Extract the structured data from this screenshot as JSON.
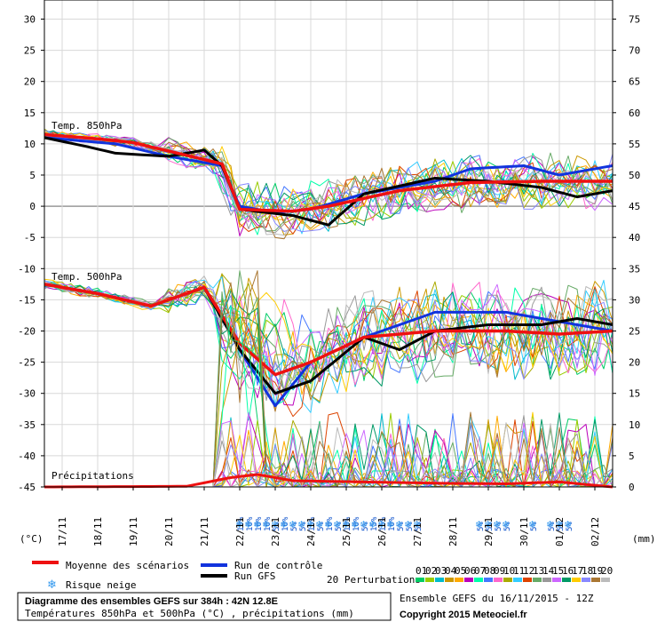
{
  "chart_data": {
    "type": "line",
    "x_dates": [
      "17/11",
      "18/11",
      "19/11",
      "20/11",
      "21/11",
      "22/11",
      "23/11",
      "24/11",
      "25/11",
      "26/11",
      "27/11",
      "28/11",
      "29/11",
      "30/11",
      "01/12",
      "02/12"
    ],
    "x_step_hours": 6,
    "x_steps": 64,
    "left_axis": {
      "label": "(°C)",
      "min": -45,
      "max": 30,
      "ticks": [
        30,
        25,
        20,
        15,
        10,
        5,
        0,
        -5,
        -10,
        -15,
        -20,
        -25,
        -30,
        -35,
        -40,
        -45
      ]
    },
    "right_axis": {
      "label": "(mm)",
      "ticks_upper": [
        75,
        70,
        65,
        60,
        55,
        50,
        45,
        40
      ],
      "ticks_lower": [
        35,
        30,
        25,
        20,
        15,
        10,
        5,
        0
      ]
    },
    "panels": [
      {
        "name": "Temp. 850hPa",
        "mean_key": [
          [
            0,
            11.5
          ],
          [
            6,
            10.8
          ],
          [
            10,
            10.2
          ],
          [
            15,
            8.5
          ],
          [
            20,
            6.8
          ],
          [
            22,
            -0.5
          ],
          [
            28,
            -0.8
          ],
          [
            32,
            0
          ],
          [
            40,
            2.5
          ],
          [
            48,
            3.8
          ],
          [
            56,
            4.0
          ],
          [
            64,
            4.0
          ]
        ],
        "control_key": [
          [
            0,
            11
          ],
          [
            8,
            10
          ],
          [
            14,
            8
          ],
          [
            20,
            6.5
          ],
          [
            22,
            0
          ],
          [
            26,
            -1
          ],
          [
            30,
            -0.5
          ],
          [
            36,
            2
          ],
          [
            44,
            4
          ],
          [
            48,
            6
          ],
          [
            54,
            6.5
          ],
          [
            58,
            5
          ],
          [
            64,
            6.5
          ]
        ],
        "gfs_key": [
          [
            0,
            11
          ],
          [
            5,
            9.5
          ],
          [
            8,
            8.5
          ],
          [
            14,
            8
          ],
          [
            18,
            9
          ],
          [
            20,
            6.5
          ],
          [
            22,
            -0.5
          ],
          [
            28,
            -1.5
          ],
          [
            32,
            -3
          ],
          [
            36,
            2
          ],
          [
            44,
            4.5
          ],
          [
            50,
            4
          ],
          [
            56,
            3
          ],
          [
            60,
            1.5
          ],
          [
            64,
            2.5
          ]
        ]
      },
      {
        "name": "Temp. 500hPa",
        "mean_key": [
          [
            0,
            -12.5
          ],
          [
            6,
            -14
          ],
          [
            12,
            -16
          ],
          [
            18,
            -13
          ],
          [
            22,
            -22
          ],
          [
            26,
            -27
          ],
          [
            30,
            -25
          ],
          [
            36,
            -21
          ],
          [
            44,
            -20
          ],
          [
            52,
            -20
          ],
          [
            58,
            -20.5
          ],
          [
            64,
            -20
          ]
        ],
        "control_key": [
          [
            0,
            -12.5
          ],
          [
            6,
            -14
          ],
          [
            12,
            -16
          ],
          [
            18,
            -13
          ],
          [
            22,
            -23
          ],
          [
            26,
            -32
          ],
          [
            30,
            -25
          ],
          [
            36,
            -21
          ],
          [
            44,
            -17
          ],
          [
            52,
            -17
          ],
          [
            56,
            -18
          ],
          [
            60,
            -19
          ],
          [
            64,
            -20
          ]
        ],
        "gfs_key": [
          [
            0,
            -12.5
          ],
          [
            6,
            -14
          ],
          [
            12,
            -16
          ],
          [
            18,
            -13
          ],
          [
            22,
            -23
          ],
          [
            26,
            -30
          ],
          [
            30,
            -28
          ],
          [
            36,
            -21
          ],
          [
            40,
            -23
          ],
          [
            44,
            -20
          ],
          [
            50,
            -19
          ],
          [
            56,
            -19
          ],
          [
            60,
            -18
          ],
          [
            64,
            -19
          ]
        ]
      },
      {
        "name": "Précipitations",
        "units": "mm",
        "mean_key": [
          [
            0,
            0
          ],
          [
            16,
            0.1
          ],
          [
            21,
            1.5
          ],
          [
            24,
            2
          ],
          [
            28,
            1
          ],
          [
            36,
            0.8
          ],
          [
            44,
            0.6
          ],
          [
            52,
            0.5
          ],
          [
            58,
            0.8
          ],
          [
            64,
            0
          ]
        ]
      }
    ],
    "snow_risk": {
      "label_percent_steps": [
        "10%",
        "10%",
        "10%",
        "10%",
        "5%",
        "10%",
        "5%",
        "5%",
        "15%",
        "5%",
        "10%",
        "5%",
        "10%",
        "10%",
        "5%",
        "15%",
        "15%",
        "10%",
        "5%",
        "5%",
        "5%",
        "5%",
        "5%",
        "5%",
        "5%",
        "5%",
        "5%",
        "5%",
        "5%"
      ],
      "steps": [
        0,
        1,
        2,
        3,
        4,
        5,
        6,
        7,
        8,
        9,
        10,
        11,
        12,
        13,
        14,
        15,
        16,
        17,
        18,
        19,
        20,
        21,
        22,
        23,
        24,
        25,
        26,
        27,
        28
      ]
    },
    "legend": {
      "mean": "Moyenne des scénarios",
      "control": "Run de contrôle",
      "gfs": "Run GFS",
      "snow": "Risque neige",
      "perturbations": "20 Perturbations",
      "perturbation_ids": [
        "01",
        "02",
        "03",
        "04",
        "05",
        "06",
        "07",
        "08",
        "09",
        "10",
        "11",
        "12",
        "13",
        "14",
        "15",
        "16",
        "17",
        "18",
        "19",
        "20"
      ]
    },
    "colors": {
      "mean": "#ee1111",
      "control": "#1133dd",
      "gfs": "#000000",
      "snow": "#3399ee",
      "perturbations": [
        "#00cc66",
        "#99cc00",
        "#00bbcc",
        "#cc9900",
        "#ffaa00",
        "#bb00bb",
        "#00ffaa",
        "#4477ff",
        "#ff66cc",
        "#aaaa00",
        "#33ccff",
        "#dd4400",
        "#66aa66",
        "#999999",
        "#cc66ff",
        "#009966",
        "#ffcc00",
        "#8888ff",
        "#aa7733",
        "#bbbbbb"
      ]
    }
  },
  "info": {
    "title_line1": "Diagramme des ensembles GEFS sur 384h : 42N 12.8E",
    "title_line2": "Températures 850hPa et 500hPa (°C) , précipitations (mm)",
    "run": "Ensemble GEFS du 16/11/2015 - 12Z",
    "copyright": "Copyright 2015 Meteociel.fr"
  }
}
